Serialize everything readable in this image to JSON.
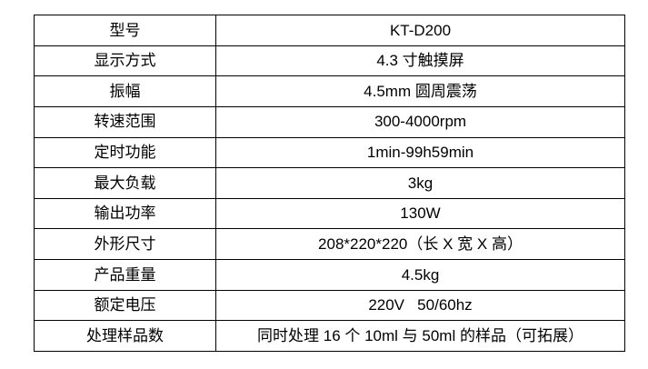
{
  "table": {
    "name": "product-specification-table",
    "border_color": "#000000",
    "text_color": "#000000",
    "background_color": "#ffffff",
    "rows": [
      {
        "label": "型号",
        "value": "KT-D200"
      },
      {
        "label": "显示方式",
        "value": "4.3 寸触摸屏"
      },
      {
        "label": "振幅",
        "value": "4.5mm 圆周震荡"
      },
      {
        "label": "转速范围",
        "value": "300-4000rpm"
      },
      {
        "label": "定时功能",
        "value": "1min-99h59min"
      },
      {
        "label": "最大负载",
        "value": "3kg"
      },
      {
        "label": "输出功率",
        "value": "130W"
      },
      {
        "label": "外形尺寸",
        "value": "208*220*220（长 X 宽 X 高）"
      },
      {
        "label": "产品重量",
        "value": "4.5kg"
      },
      {
        "label": "额定电压",
        "value": "220V   50/60hz"
      },
      {
        "label": "处理样品数",
        "value": "同时处理 16 个 10ml 与 50ml 的样品（可拓展）"
      }
    ]
  }
}
